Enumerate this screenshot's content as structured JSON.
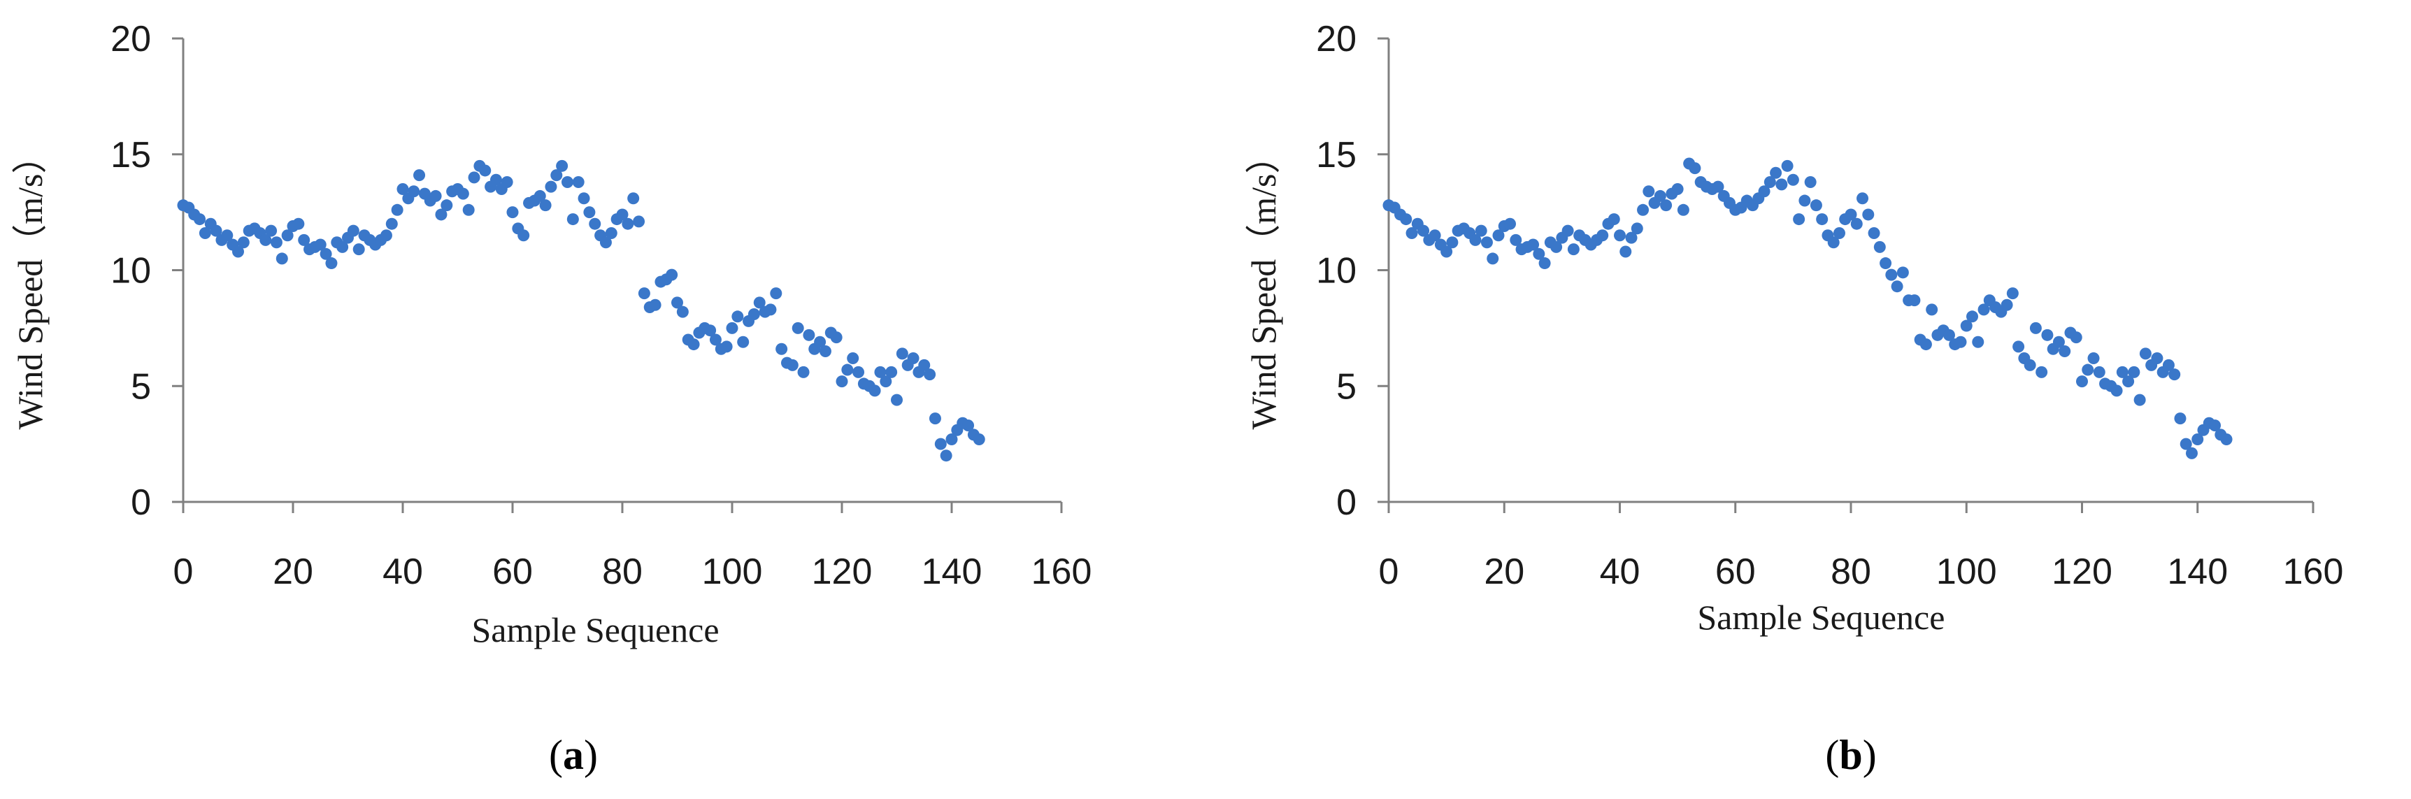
{
  "chart_data": [
    {
      "panel": "a",
      "type": "scatter",
      "caption_letter": "a",
      "xlabel": "Sample Sequence",
      "ylabel": "Wind Speed（m/s）",
      "xlim": [
        0,
        160
      ],
      "ylim": [
        0,
        20
      ],
      "xticks": [
        "0",
        "20",
        "40",
        "60",
        "80",
        "100",
        "120",
        "140",
        "160"
      ],
      "yticks": [
        "0",
        "5",
        "10",
        "15",
        "20"
      ],
      "grid": false,
      "legend": "none",
      "marker_color": "#3a77c9",
      "x": [
        0,
        1,
        2,
        3,
        4,
        5,
        6,
        7,
        8,
        9,
        10,
        11,
        12,
        13,
        14,
        15,
        16,
        17,
        18,
        19,
        20,
        21,
        22,
        23,
        24,
        25,
        26,
        27,
        28,
        29,
        30,
        31,
        32,
        33,
        34,
        35,
        36,
        37,
        38,
        39,
        40,
        41,
        42,
        43,
        44,
        45,
        46,
        47,
        48,
        49,
        50,
        51,
        52,
        53,
        54,
        55,
        56,
        57,
        58,
        59,
        60,
        61,
        62,
        63,
        64,
        65,
        66,
        67,
        68,
        69,
        70,
        71,
        72,
        73,
        74,
        75,
        76,
        77,
        78,
        79,
        80,
        81,
        82,
        83,
        84,
        85,
        86,
        87,
        88,
        89,
        90,
        91,
        92,
        93,
        94,
        95,
        96,
        97,
        98,
        99,
        100,
        101,
        102,
        103,
        104,
        105,
        106,
        107,
        108,
        109,
        110,
        111,
        112,
        113,
        114,
        115,
        116,
        117,
        118,
        119,
        120,
        121,
        122,
        123,
        124,
        125,
        126,
        127,
        128,
        129,
        130,
        131,
        132,
        133,
        134,
        135,
        136,
        137,
        138,
        139,
        140,
        141,
        142,
        143,
        144,
        145
      ],
      "y": [
        12.8,
        12.7,
        12.4,
        12.2,
        11.6,
        12.0,
        11.7,
        11.3,
        11.5,
        11.1,
        10.8,
        11.2,
        11.7,
        11.8,
        11.6,
        11.3,
        11.7,
        11.2,
        10.5,
        11.5,
        11.9,
        12.0,
        11.3,
        10.9,
        11.0,
        11.1,
        10.7,
        10.3,
        11.2,
        11.0,
        11.4,
        11.7,
        10.9,
        11.5,
        11.3,
        11.1,
        11.3,
        11.5,
        12.0,
        12.6,
        13.5,
        13.1,
        13.4,
        14.1,
        13.3,
        13.0,
        13.2,
        12.4,
        12.8,
        13.4,
        13.5,
        13.3,
        12.6,
        14.0,
        14.5,
        14.3,
        13.6,
        13.9,
        13.5,
        13.8,
        12.5,
        11.8,
        11.5,
        12.9,
        13.0,
        13.2,
        12.8,
        13.6,
        14.1,
        14.5,
        13.8,
        12.2,
        13.8,
        13.1,
        12.5,
        12.0,
        11.5,
        11.2,
        11.6,
        12.2,
        12.4,
        12.0,
        13.1,
        12.1,
        9.0,
        8.4,
        8.5,
        9.5,
        9.6,
        9.8,
        8.6,
        8.2,
        7.0,
        6.8,
        7.3,
        7.5,
        7.4,
        7.0,
        6.6,
        6.7,
        7.5,
        8.0,
        6.9,
        7.8,
        8.1,
        8.6,
        8.2,
        8.3,
        9.0,
        6.6,
        6.0,
        5.9,
        7.5,
        5.6,
        7.2,
        6.6,
        6.9,
        6.5,
        7.3,
        7.1,
        5.2,
        5.7,
        6.2,
        5.6,
        5.1,
        5.0,
        4.8,
        5.6,
        5.2,
        5.6,
        4.4,
        6.4,
        5.9,
        6.2,
        5.6,
        5.9,
        5.5,
        3.6,
        2.5,
        2.0,
        2.7,
        3.1,
        3.4,
        3.3,
        2.9,
        2.7
      ]
    },
    {
      "panel": "b",
      "type": "scatter",
      "caption_letter": "b",
      "xlabel": "Sample Sequence",
      "ylabel": "Wind Speed（m/s）",
      "xlim": [
        0,
        160
      ],
      "ylim": [
        0,
        20
      ],
      "xticks": [
        "0",
        "20",
        "40",
        "60",
        "80",
        "100",
        "120",
        "140",
        "160"
      ],
      "yticks": [
        "0",
        "5",
        "10",
        "15",
        "20"
      ],
      "grid": false,
      "legend": "none",
      "marker_color": "#3a77c9",
      "x": [
        0,
        1,
        2,
        3,
        4,
        5,
        6,
        7,
        8,
        9,
        10,
        11,
        12,
        13,
        14,
        15,
        16,
        17,
        18,
        19,
        20,
        21,
        22,
        23,
        24,
        25,
        26,
        27,
        28,
        29,
        30,
        31,
        32,
        33,
        34,
        35,
        36,
        37,
        38,
        39,
        40,
        41,
        42,
        43,
        44,
        45,
        46,
        47,
        48,
        49,
        50,
        51,
        52,
        53,
        54,
        55,
        56,
        57,
        58,
        59,
        60,
        61,
        62,
        63,
        64,
        65,
        66,
        67,
        68,
        69,
        70,
        71,
        72,
        73,
        74,
        75,
        76,
        77,
        78,
        79,
        80,
        81,
        82,
        83,
        84,
        85,
        86,
        87,
        88,
        89,
        90,
        91,
        92,
        93,
        94,
        95,
        96,
        97,
        98,
        99,
        100,
        101,
        102,
        103,
        104,
        105,
        106,
        107,
        108,
        109,
        110,
        111,
        112,
        113,
        114,
        115,
        116,
        117,
        118,
        119,
        120,
        121,
        122,
        123,
        124,
        125,
        126,
        127,
        128,
        129,
        130,
        131,
        132,
        133,
        134,
        135,
        136,
        137,
        138,
        139,
        140,
        141,
        142,
        143,
        144,
        145
      ],
      "y": [
        12.8,
        12.7,
        12.4,
        12.2,
        11.6,
        12.0,
        11.7,
        11.3,
        11.5,
        11.1,
        10.8,
        11.2,
        11.7,
        11.8,
        11.6,
        11.3,
        11.7,
        11.2,
        10.5,
        11.5,
        11.9,
        12.0,
        11.3,
        10.9,
        11.0,
        11.1,
        10.7,
        10.3,
        11.2,
        11.0,
        11.4,
        11.7,
        10.9,
        11.5,
        11.3,
        11.1,
        11.3,
        11.5,
        12.0,
        12.2,
        11.5,
        10.8,
        11.4,
        11.8,
        12.6,
        13.4,
        12.9,
        13.2,
        12.8,
        13.3,
        13.5,
        12.6,
        14.6,
        14.4,
        13.8,
        13.6,
        13.5,
        13.6,
        13.2,
        12.9,
        12.6,
        12.7,
        13.0,
        12.8,
        13.1,
        13.4,
        13.8,
        14.2,
        13.7,
        14.5,
        13.9,
        12.2,
        13.0,
        13.8,
        12.8,
        12.2,
        11.5,
        11.2,
        11.6,
        12.2,
        12.4,
        12.0,
        13.1,
        12.4,
        11.6,
        11.0,
        10.3,
        9.8,
        9.3,
        9.9,
        8.7,
        8.7,
        7.0,
        6.8,
        8.3,
        7.2,
        7.4,
        7.2,
        6.8,
        6.9,
        7.6,
        8.0,
        6.9,
        8.3,
        8.7,
        8.4,
        8.2,
        8.5,
        9.0,
        6.7,
        6.2,
        5.9,
        7.5,
        5.6,
        7.2,
        6.6,
        6.9,
        6.5,
        7.3,
        7.1,
        5.2,
        5.7,
        6.2,
        5.6,
        5.1,
        5.0,
        4.8,
        5.6,
        5.2,
        5.6,
        4.4,
        6.4,
        5.9,
        6.2,
        5.6,
        5.9,
        5.5,
        3.6,
        2.5,
        2.1,
        2.7,
        3.1,
        3.4,
        3.3,
        2.9,
        2.7
      ]
    }
  ]
}
